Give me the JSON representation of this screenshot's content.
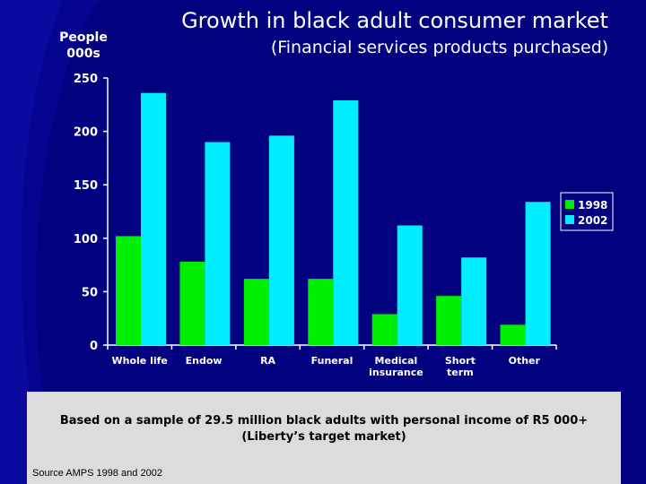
{
  "slide": {
    "title": "Growth in black adult consumer market",
    "subtitle": "(Financial services products purchased)",
    "note_line1": "Based on a sample of 29.5 million black adults with personal income of R5 000+",
    "note_line2": "(Liberty’s target market)",
    "source": "Source AMPS 1998 and 2002"
  },
  "colors": {
    "background": "#020280",
    "series_1998": "#00ee00",
    "series_2002": "#00eeff",
    "text": "#ffffff",
    "note_box": "#dcdcdc"
  },
  "chart_data": {
    "type": "bar",
    "title": "",
    "ylabel_lines": [
      "People",
      "000s"
    ],
    "xlabel": "",
    "categories": [
      [
        "Whole life"
      ],
      [
        "Endow"
      ],
      [
        "RA"
      ],
      [
        "Funeral"
      ],
      [
        "Medical",
        "insurance"
      ],
      [
        "Short",
        "term"
      ],
      [
        "Other"
      ]
    ],
    "series": [
      {
        "name": "1998",
        "color": "#00ee00",
        "values": [
          102,
          78,
          62,
          62,
          29,
          46,
          19
        ]
      },
      {
        "name": "2002",
        "color": "#00eeff",
        "values": [
          236,
          190,
          196,
          229,
          112,
          82,
          134
        ]
      }
    ],
    "ylim": [
      0,
      250
    ],
    "yticks": [
      0,
      50,
      100,
      150,
      200,
      250
    ],
    "grid": false,
    "legend": "right"
  }
}
